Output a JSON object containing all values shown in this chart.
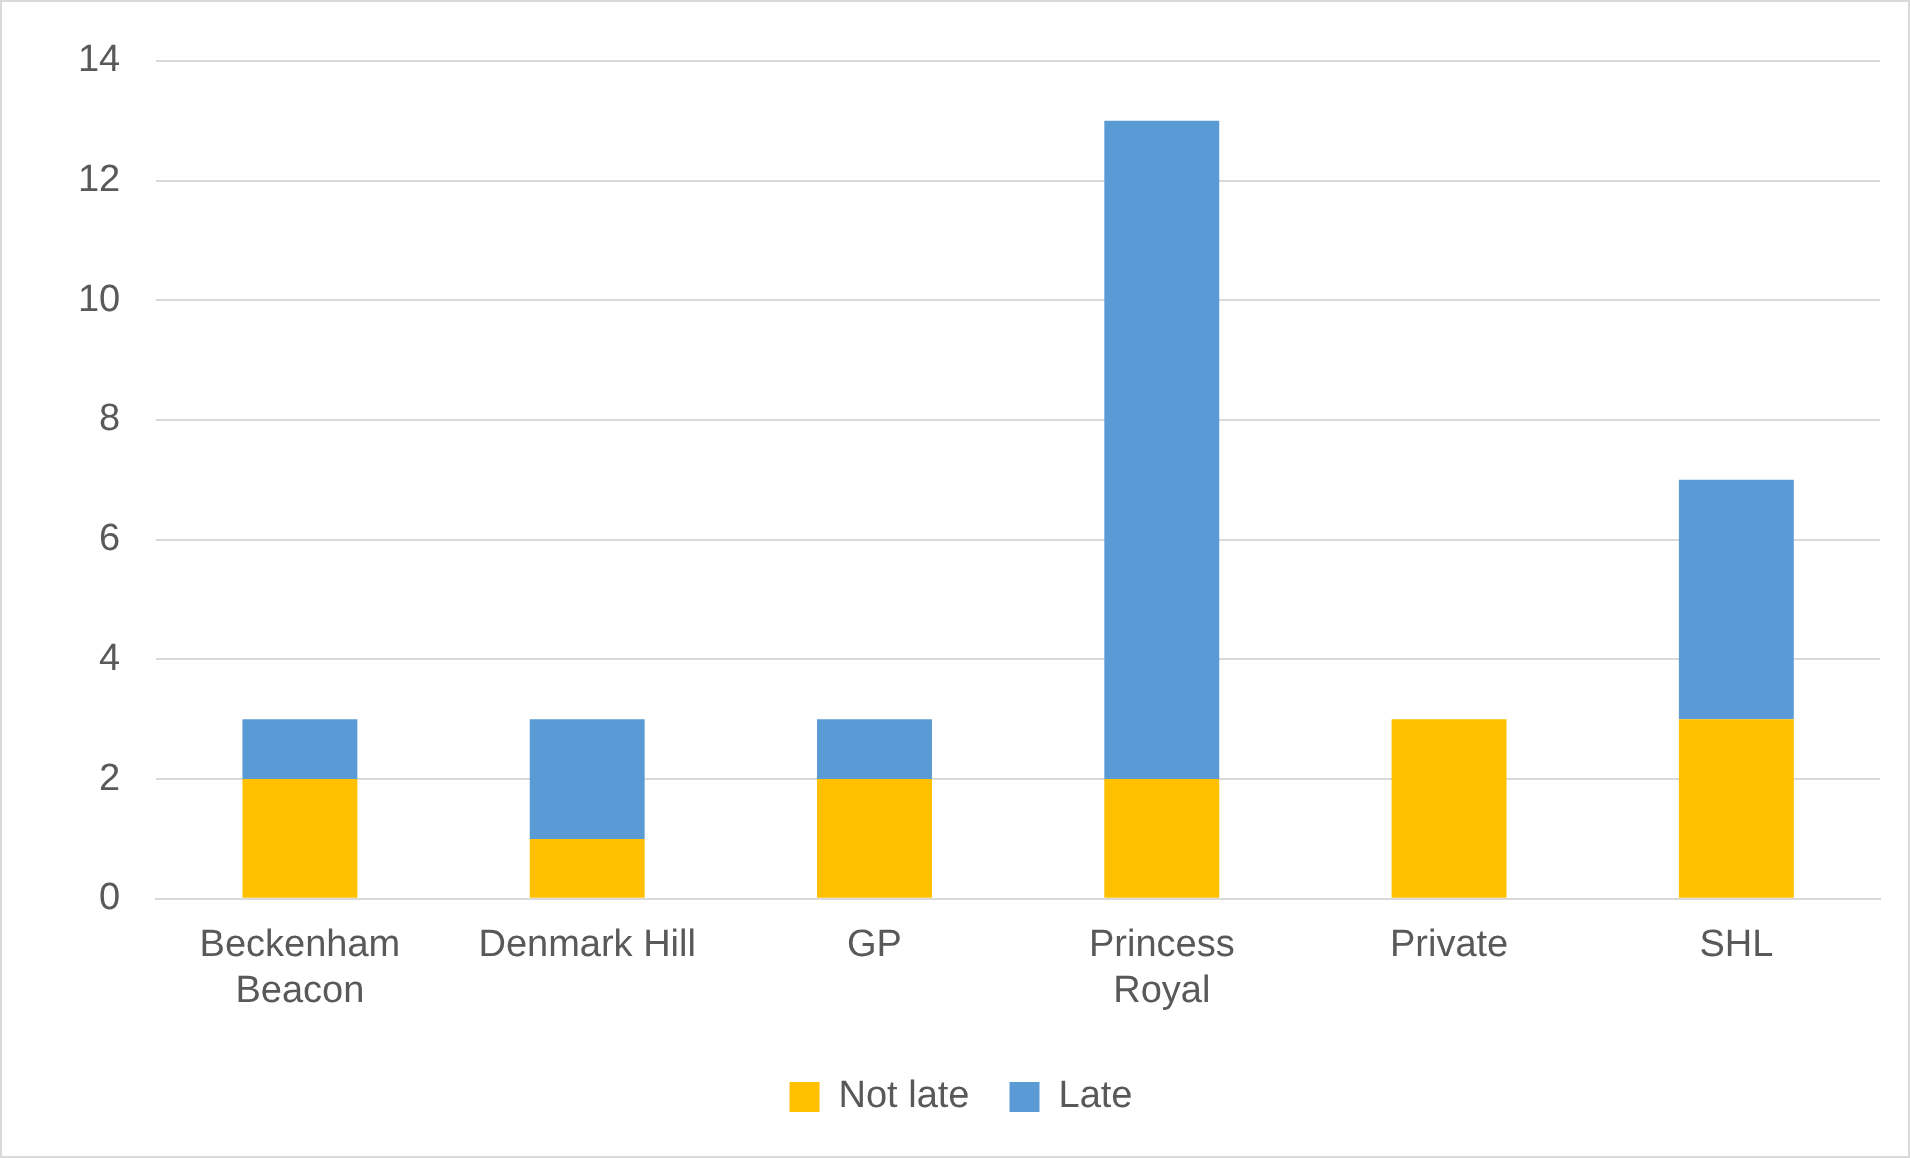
{
  "chart_data": {
    "type": "bar",
    "stacked": true,
    "categories": [
      "Beckenham Beacon",
      "Denmark Hill",
      "GP",
      "Princess Royal",
      "Private",
      "SHL"
    ],
    "series": [
      {
        "name": "Not late",
        "color": "#ffc000",
        "values": [
          2,
          1,
          2,
          2,
          3,
          3
        ]
      },
      {
        "name": "Late",
        "color": "#5b9bd5",
        "values": [
          1,
          2,
          1,
          11,
          0,
          4
        ]
      }
    ],
    "ylim": [
      0,
      14
    ],
    "yticks": [
      0,
      2,
      4,
      6,
      8,
      10,
      12,
      14
    ],
    "grid": "y",
    "legend": "bottom"
  }
}
